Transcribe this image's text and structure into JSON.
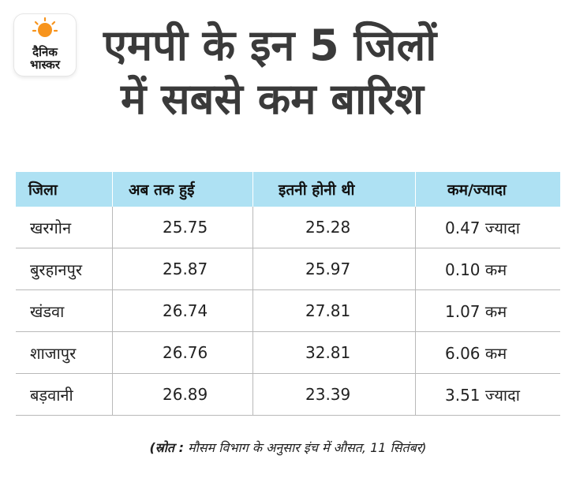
{
  "logo": {
    "line1": "दैनिक",
    "line2": "भास्कर",
    "sun_color": "#f7941d"
  },
  "title": {
    "line1": "एमपी के इन 5 जिलों",
    "line2": "में सबसे कम बारिश"
  },
  "table": {
    "header_color": "#aee1f3",
    "headers": [
      "जिला",
      "अब तक हुई",
      "इतनी होनी थी",
      "कम/ज्यादा"
    ],
    "rows": [
      [
        "खरगोन",
        "25.75",
        "25.28",
        "0.47 ज्यादा"
      ],
      [
        "बुरहानपुर",
        "25.87",
        "25.97",
        "0.10 कम"
      ],
      [
        "खंडवा",
        "26.74",
        "27.81",
        "1.07 कम"
      ],
      [
        "शाजापुर",
        "26.76",
        "32.81",
        "6.06 कम"
      ],
      [
        "बड़वानी",
        "26.89",
        "23.39",
        "3.51 ज्यादा"
      ]
    ]
  },
  "source": {
    "label": "(स्रोत :",
    "text": " मौसम विभाग के अनुसार इंच में औसत, 11 सितंबर)"
  }
}
